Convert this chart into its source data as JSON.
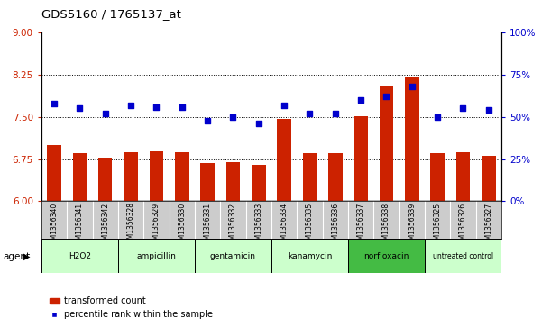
{
  "title": "GDS5160 / 1765137_at",
  "samples": [
    "GSM1356340",
    "GSM1356341",
    "GSM1356342",
    "GSM1356328",
    "GSM1356329",
    "GSM1356330",
    "GSM1356331",
    "GSM1356332",
    "GSM1356333",
    "GSM1356334",
    "GSM1356335",
    "GSM1356336",
    "GSM1356337",
    "GSM1356338",
    "GSM1356339",
    "GSM1356325",
    "GSM1356326",
    "GSM1356327"
  ],
  "bar_values": [
    7.0,
    6.85,
    6.78,
    6.87,
    6.89,
    6.87,
    6.68,
    6.69,
    6.64,
    7.47,
    6.85,
    6.86,
    7.52,
    8.05,
    8.22,
    6.86,
    6.87,
    6.81
  ],
  "dot_values": [
    58,
    55,
    52,
    57,
    56,
    56,
    48,
    50,
    46,
    57,
    52,
    52,
    60,
    62,
    68,
    50,
    55,
    54
  ],
  "agents": [
    {
      "label": "H2O2",
      "start": 0,
      "end": 3,
      "color": "#ccffcc"
    },
    {
      "label": "ampicillin",
      "start": 3,
      "end": 6,
      "color": "#ccffcc"
    },
    {
      "label": "gentamicin",
      "start": 6,
      "end": 9,
      "color": "#ccffcc"
    },
    {
      "label": "kanamycin",
      "start": 9,
      "end": 12,
      "color": "#ccffcc"
    },
    {
      "label": "norfloxacin",
      "start": 12,
      "end": 15,
      "color": "#44bb44"
    },
    {
      "label": "untreated control",
      "start": 15,
      "end": 18,
      "color": "#ccffcc"
    }
  ],
  "ylim_left": [
    6,
    9
  ],
  "ylim_right": [
    0,
    100
  ],
  "yticks_left": [
    6,
    6.75,
    7.5,
    8.25,
    9
  ],
  "yticks_right": [
    0,
    25,
    50,
    75,
    100
  ],
  "ytick_labels_right": [
    "0%",
    "25%",
    "50%",
    "75%",
    "100%"
  ],
  "bar_color": "#cc2200",
  "dot_color": "#0000cc",
  "hline_values": [
    6.75,
    7.5,
    8.25
  ],
  "legend_bar_label": "transformed count",
  "legend_dot_label": "percentile rank within the sample",
  "background_color": "#ffffff"
}
